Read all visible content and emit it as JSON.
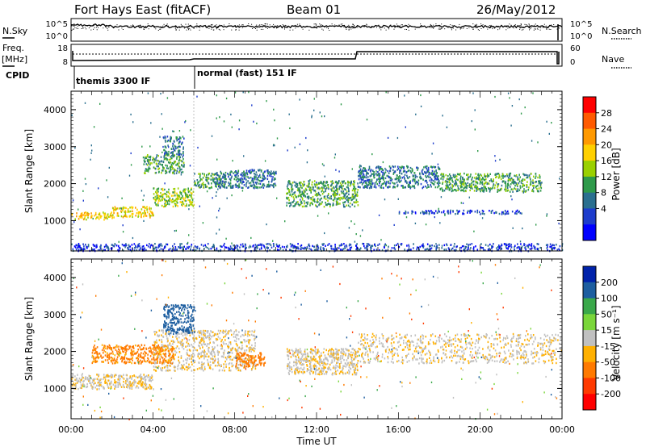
{
  "header": {
    "title": "Fort Hays East (fitACF)",
    "beam": "Beam 01",
    "date": "26/May/2012"
  },
  "left_labels": {
    "nsky": "N.Sky",
    "freq": "Freq.",
    "mhz": "[MHz]",
    "cpid": "CPID"
  },
  "right_labels": {
    "nsearch": "N.Search",
    "nave": "Nave"
  },
  "noise_axis": {
    "left_ticks": [
      "10^5",
      "10^0"
    ],
    "right_ticks": [
      "10^5",
      "10^0"
    ]
  },
  "freq_axis": {
    "left_ticks": [
      "18",
      "8"
    ],
    "right_ticks": [
      "60",
      "0"
    ]
  },
  "cpid": {
    "segments": [
      {
        "label": "themis 3300 IF",
        "start_hour": 0,
        "end_hour": 6
      },
      {
        "label": "normal (fast) 151 IF",
        "start_hour": 6,
        "end_hour": 24
      }
    ]
  },
  "power_colorbar": {
    "label": "Power [dB]",
    "ticks": [
      "28",
      "24",
      "20",
      "16",
      "12",
      "8",
      "4"
    ],
    "colors": [
      "#ff0000",
      "#ff5a00",
      "#ff9900",
      "#ffd000",
      "#9ad000",
      "#2e9a4a",
      "#2a6f8f",
      "#1d3ccc",
      "#0000ff"
    ]
  },
  "velocity_colorbar": {
    "label": "Velocity [m s⁻¹]",
    "ticks": [
      "200",
      "100",
      "50",
      "15",
      "-15",
      "-50",
      "-100",
      "-200"
    ],
    "colors": [
      "#0022aa",
      "#1d5ea0",
      "#3aa84a",
      "#7ad63a",
      "#c0c0c0",
      "#ffb000",
      "#ff7a00",
      "#ff3a00",
      "#ff0000"
    ]
  },
  "chart_data": [
    {
      "type": "heatmap",
      "panel": "power",
      "ylabel": "Slant Range [km]",
      "xlabel": "Time UT",
      "x_ticks": [
        "00:00",
        "04:00",
        "08:00",
        "12:00",
        "16:00",
        "20:00",
        "00:00"
      ],
      "y_ticks": [
        "1000",
        "2000",
        "3000",
        "4000"
      ],
      "xlim_hours": [
        0,
        24
      ],
      "ylim_km": [
        180,
        4500
      ],
      "bands": [
        {
          "start_h": 0.0,
          "end_h": 2.0,
          "range0_km": 1050,
          "range1_km": 1250,
          "value_db": 20
        },
        {
          "start_h": 2.0,
          "end_h": 4.0,
          "range0_km": 1100,
          "range1_km": 1400,
          "value_db": 20
        },
        {
          "start_h": 4.0,
          "end_h": 6.0,
          "range0_km": 1400,
          "range1_km": 1900,
          "value_db": 16
        },
        {
          "start_h": 6.0,
          "end_h": 7.5,
          "range0_km": 1900,
          "range1_km": 2300,
          "value_db": 12
        },
        {
          "start_h": 3.5,
          "end_h": 5.5,
          "range0_km": 2300,
          "range1_km": 2800,
          "value_db": 12
        },
        {
          "start_h": 4.5,
          "end_h": 5.5,
          "range0_km": 2800,
          "range1_km": 3300,
          "value_db": 8
        },
        {
          "start_h": 7.0,
          "end_h": 10.0,
          "range0_km": 1900,
          "range1_km": 2400,
          "value_db": 8
        },
        {
          "start_h": 10.5,
          "end_h": 14.0,
          "range0_km": 1400,
          "range1_km": 2100,
          "value_db": 12
        },
        {
          "start_h": 14.0,
          "end_h": 18.0,
          "range0_km": 1900,
          "range1_km": 2500,
          "value_db": 8
        },
        {
          "start_h": 18.0,
          "end_h": 23.0,
          "range0_km": 1800,
          "range1_km": 2300,
          "value_db": 12
        },
        {
          "start_h": 16.0,
          "end_h": 22.0,
          "range0_km": 1200,
          "range1_km": 1300,
          "value_db": 4
        },
        {
          "start_h": 0.0,
          "end_h": 24.0,
          "range0_km": 200,
          "range1_km": 400,
          "value_db": 4
        }
      ]
    },
    {
      "type": "heatmap",
      "panel": "velocity",
      "ylabel": "Slant Range [km]",
      "xlabel": "Time UT",
      "x_ticks": [
        "00:00",
        "04:00",
        "08:00",
        "12:00",
        "16:00",
        "20:00",
        "00:00"
      ],
      "y_ticks": [
        "1000",
        "2000",
        "3000",
        "4000"
      ],
      "xlim_hours": [
        0,
        24
      ],
      "ylim_km": [
        180,
        4500
      ],
      "bands": [
        {
          "start_h": 0.0,
          "end_h": 4.0,
          "range0_km": 1000,
          "range1_km": 1400,
          "value_ms": -10
        },
        {
          "start_h": 4.0,
          "end_h": 9.0,
          "range0_km": 1500,
          "range1_km": 2600,
          "value_ms": -10
        },
        {
          "start_h": 4.5,
          "end_h": 6.0,
          "range0_km": 2500,
          "range1_km": 3300,
          "value_ms": 150
        },
        {
          "start_h": 8.0,
          "end_h": 9.5,
          "range0_km": 1600,
          "range1_km": 2000,
          "value_ms": -80
        },
        {
          "start_h": 10.5,
          "end_h": 14.0,
          "range0_km": 1400,
          "range1_km": 2100,
          "value_ms": -10
        },
        {
          "start_h": 14.0,
          "end_h": 24.0,
          "range0_km": 1700,
          "range1_km": 2500,
          "value_ms": -10
        },
        {
          "start_h": 1.0,
          "end_h": 5.0,
          "range0_km": 1700,
          "range1_km": 2200,
          "value_ms": -60
        }
      ]
    }
  ],
  "xlabel": "Time UT"
}
